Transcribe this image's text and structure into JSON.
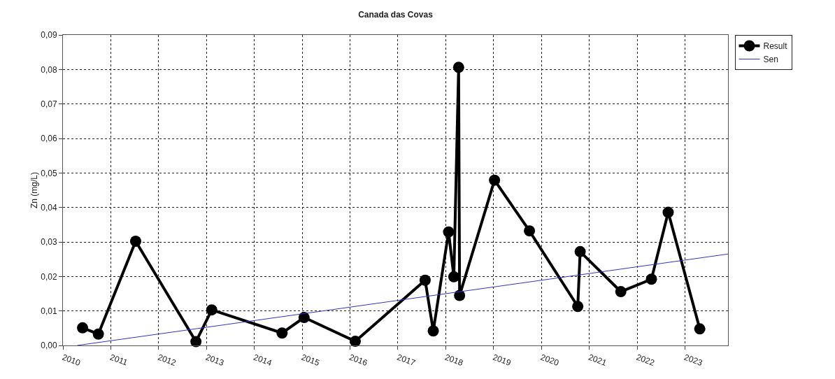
{
  "chart_data": {
    "type": "line",
    "title": "Canada das Covas",
    "ylabel": "Zn (mg/L)",
    "series": [
      {
        "name": "Result",
        "color": "#000000",
        "marker": "circle",
        "x": [
          2010.41,
          2010.74,
          2011.52,
          2012.78,
          2013.11,
          2014.58,
          2015.04,
          2016.11,
          2017.57,
          2017.74,
          2018.06,
          2018.17,
          2018.27,
          2018.29,
          2019.02,
          2019.75,
          2020.76,
          2020.81,
          2021.66,
          2022.3,
          2022.65,
          2023.31
        ],
        "values": [
          0.0051,
          0.0033,
          0.0302,
          0.0011,
          0.0103,
          0.0036,
          0.0081,
          0.0012,
          0.0189,
          0.0042,
          0.0329,
          0.0199,
          0.0806,
          0.0145,
          0.0479,
          0.0332,
          0.0113,
          0.0272,
          0.0156,
          0.0192,
          0.0386,
          0.0048
        ]
      },
      {
        "name": "Sen",
        "color": "#3333cc",
        "marker": "none",
        "x": [
          2010.3,
          2023.9
        ],
        "values": [
          0,
          0.0265
        ]
      }
    ],
    "xlim": [
      2010,
      2023.9
    ],
    "xticks": [
      2010,
      2011,
      2012,
      2013,
      2014,
      2015,
      2016,
      2017,
      2018,
      2019,
      2020,
      2021,
      2022,
      2023
    ],
    "ylim": [
      0,
      0.09
    ],
    "yticks": [
      {
        "value": 0,
        "label": "0,00"
      },
      {
        "value": 0.01,
        "label": "0,01"
      },
      {
        "value": 0.02,
        "label": "0,02"
      },
      {
        "value": 0.03,
        "label": "0,03"
      },
      {
        "value": 0.04,
        "label": "0,04"
      },
      {
        "value": 0.05,
        "label": "0,05"
      },
      {
        "value": 0.06,
        "label": "0,06"
      },
      {
        "value": 0.07,
        "label": "0,07"
      },
      {
        "value": 0.08,
        "label": "0,08"
      },
      {
        "value": 0.09,
        "label": "0,09"
      }
    ],
    "grid": true,
    "legend": "top right",
    "line_style": "solid"
  }
}
